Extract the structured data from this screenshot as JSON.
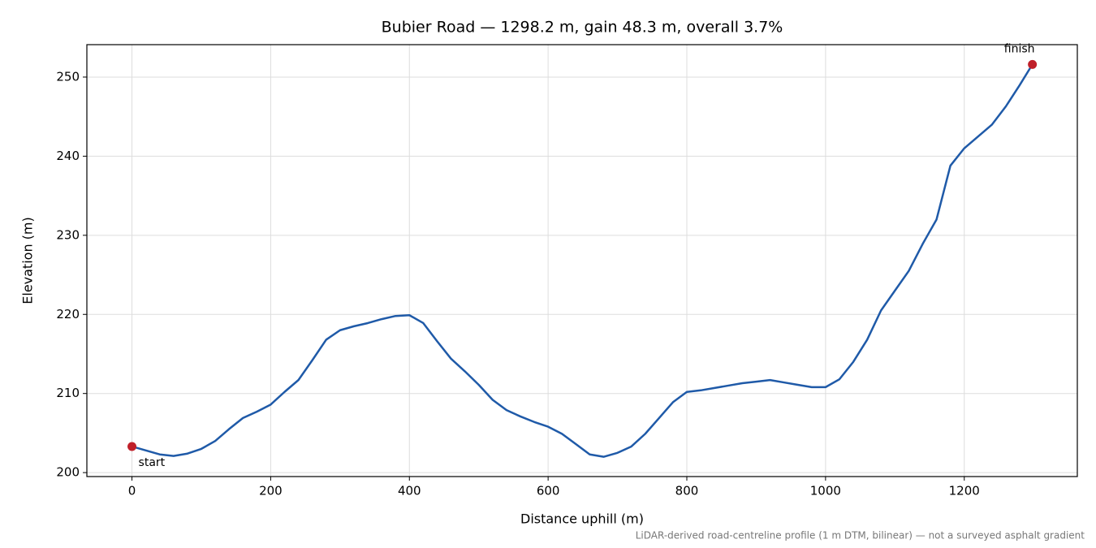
{
  "chart_data": {
    "type": "line",
    "title": "Bubier Road — 1298.2 m, gain 48.3 m, overall 3.7%",
    "x_label": "Distance uphill (m)",
    "y_label": "Elevation (m)",
    "footnote": "LiDAR-derived road-centreline profile (1 m DTM, bilinear) — not a surveyed asphalt gradient",
    "x": [
      0,
      20,
      40,
      60,
      80,
      100,
      120,
      140,
      160,
      180,
      200,
      220,
      240,
      260,
      280,
      300,
      320,
      340,
      360,
      380,
      400,
      420,
      440,
      460,
      480,
      500,
      520,
      540,
      560,
      580,
      600,
      620,
      640,
      660,
      680,
      700,
      720,
      740,
      760,
      780,
      800,
      820,
      840,
      860,
      880,
      900,
      920,
      940,
      960,
      980,
      1000,
      1020,
      1040,
      1060,
      1080,
      1100,
      1120,
      1140,
      1160,
      1180,
      1200,
      1220,
      1240,
      1260,
      1280,
      1298.2
    ],
    "series": [
      {
        "name": "Elevation",
        "color": "#1f5aa8",
        "values": [
          203.3,
          202.8,
          202.3,
          202.1,
          202.4,
          203.0,
          204.0,
          205.5,
          206.9,
          207.7,
          208.6,
          210.2,
          211.7,
          214.2,
          216.8,
          218.0,
          218.5,
          218.9,
          219.4,
          219.8,
          219.9,
          218.9,
          216.6,
          214.4,
          212.8,
          211.1,
          209.2,
          207.9,
          207.1,
          206.4,
          205.8,
          204.9,
          203.6,
          202.3,
          202.0,
          202.5,
          203.3,
          204.9,
          206.9,
          208.9,
          210.2,
          210.4,
          210.7,
          211.0,
          211.3,
          211.5,
          211.7,
          211.4,
          211.1,
          210.8,
          210.8,
          211.8,
          214.0,
          216.8,
          220.5,
          223.0,
          225.5,
          228.9,
          232.0,
          238.8,
          241.0,
          242.5,
          244.0,
          246.3,
          249.0,
          251.6
        ]
      }
    ],
    "annotations": [
      {
        "text": "start",
        "index": 0
      },
      {
        "text": "finish",
        "index": 65
      }
    ],
    "marker_color": "#c0202a",
    "xlim": [
      -65,
      1363
    ],
    "ylim": [
      199.5,
      254.1
    ],
    "xticks": [
      0,
      200,
      400,
      600,
      800,
      1000,
      1200
    ],
    "yticks": [
      200,
      210,
      220,
      230,
      240,
      250
    ],
    "grid": true
  }
}
